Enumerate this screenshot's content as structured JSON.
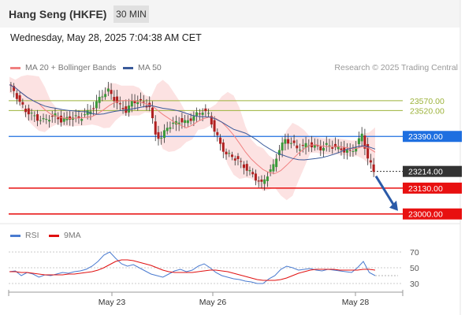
{
  "header": {
    "title": "Hang Seng (HKFE)",
    "timeframe": "30 MIN"
  },
  "datetime": "Wednesday, May 28, 2025 7:04:38 AM CET",
  "legend": {
    "ma20_label": "MA 20 + Bollinger Bands",
    "ma50_label": "MA 50",
    "rsi_label": "RSI",
    "rsi_ma_label": "9MA",
    "colors": {
      "ma20": "#f08080",
      "ma50": "#3a5a9a",
      "rsi": "#4a7bd0",
      "rsi_ma": "#e01010"
    }
  },
  "copyright": "Research © 2025 Trading Central",
  "chart_data": {
    "type": "line",
    "series_kind": "candlestick price with moving averages",
    "x_ticks": [
      "May 23",
      "May 26",
      "May 28"
    ],
    "ylim": [
      22975,
      23700
    ],
    "levels": [
      {
        "label": "23570.00",
        "value": 23570,
        "kind": "resistance",
        "color": "#9cb23a"
      },
      {
        "label": "23520.00",
        "value": 23520,
        "kind": "resistance",
        "color": "#9cb23a"
      },
      {
        "label": "23390.00",
        "value": 23390,
        "kind": "pivot",
        "color": "#1e6fe0"
      },
      {
        "label": "23214.00",
        "value": 23214,
        "kind": "last price",
        "color": "#333333"
      },
      {
        "label": "23130.00",
        "value": 23130,
        "kind": "support",
        "color": "#e81010"
      },
      {
        "label": "23000.00",
        "value": 23000,
        "kind": "support",
        "color": "#e81010"
      }
    ],
    "price_path": [
      23650,
      23620,
      23560,
      23520,
      23500,
      23480,
      23470,
      23485,
      23495,
      23470,
      23480,
      23490,
      23480,
      23500,
      23520,
      23560,
      23600,
      23620,
      23580,
      23540,
      23520,
      23560,
      23570,
      23555,
      23540,
      23400,
      23380,
      23440,
      23450,
      23470,
      23460,
      23480,
      23500,
      23520,
      23500,
      23420,
      23350,
      23300,
      23290,
      23270,
      23240,
      23210,
      23180,
      23150,
      23200,
      23240,
      23330,
      23370,
      23360,
      23330,
      23340,
      23350,
      23340,
      23330,
      23345,
      23340,
      23330,
      23320,
      23310,
      23340,
      23400,
      23280,
      23214
    ],
    "rsi": {
      "axis_ticks": [
        "70",
        "50",
        "30"
      ],
      "ylim": [
        20,
        80
      ],
      "values": [
        45,
        46,
        40,
        44,
        42,
        38,
        41,
        40,
        42,
        44,
        43,
        45,
        46,
        48,
        52,
        58,
        66,
        70,
        62,
        55,
        52,
        54,
        50,
        46,
        42,
        40,
        38,
        42,
        46,
        48,
        45,
        47,
        52,
        55,
        50,
        44,
        40,
        38,
        36,
        35,
        33,
        32,
        30,
        30,
        36,
        40,
        48,
        52,
        50,
        47,
        48,
        49,
        47,
        46,
        48,
        47,
        46,
        45,
        44,
        50,
        58,
        44,
        40
      ],
      "ma_values": [
        45,
        45,
        44,
        44,
        43,
        42,
        41,
        41,
        41,
        41,
        42,
        42,
        43,
        44,
        45,
        47,
        50,
        54,
        58,
        60,
        60,
        59,
        57,
        55,
        53,
        50,
        47,
        45,
        44,
        44,
        44,
        44,
        45,
        46,
        47,
        47,
        46,
        45,
        43,
        41,
        39,
        37,
        35,
        34,
        34,
        34,
        35,
        37,
        40,
        43,
        45,
        47,
        48,
        48,
        48,
        48,
        47,
        47,
        47,
        47,
        48,
        48,
        47
      ]
    }
  }
}
